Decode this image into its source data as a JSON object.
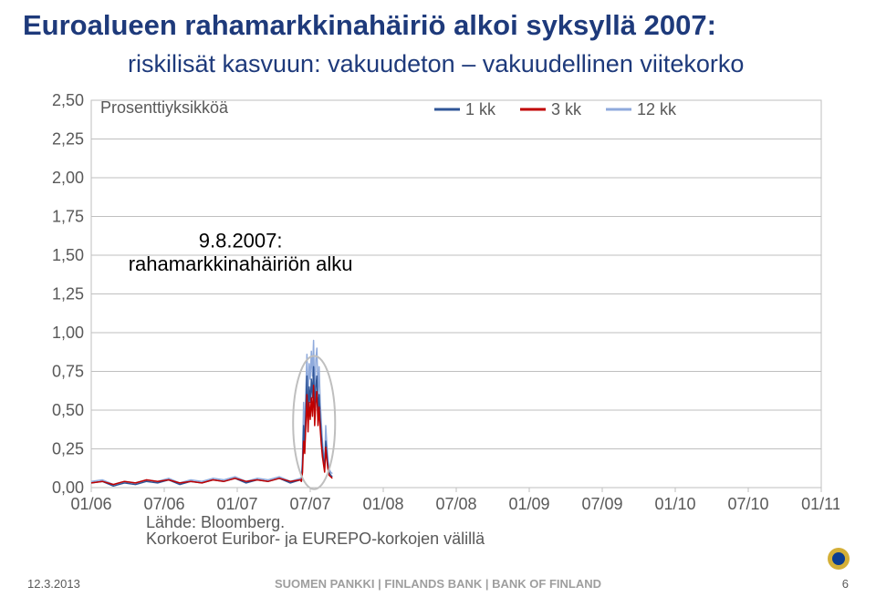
{
  "title": "Euroalueen rahamarkkinahäiriö alkoi syksyllä 2007:",
  "subtitle": "riskilisät kasvuun: vakuudeton – vakuudellinen viitekorko",
  "chart": {
    "type": "line",
    "unit_label": "Prosenttiyksikköä",
    "xlim": [
      0,
      132
    ],
    "ylim": [
      0.0,
      2.5
    ],
    "ytick_step": 0.25,
    "yticks": [
      "0,00",
      "0,25",
      "0,50",
      "0,75",
      "1,00",
      "1,25",
      "1,50",
      "1,75",
      "2,00",
      "2,25",
      "2,50"
    ],
    "xticks": [
      "01/06",
      "07/06",
      "01/07",
      "07/07",
      "01/08",
      "07/08",
      "01/09",
      "07/09",
      "01/10",
      "07/10",
      "01/11"
    ],
    "legend": [
      "1 kk",
      "3 kk",
      "12 kk"
    ],
    "legend_colors": [
      "#2f5597",
      "#c00000",
      "#8faadc"
    ],
    "background_color": "#ffffff",
    "grid_color": "#bfbfbf",
    "plot_border_color": "#bfbfbf",
    "axis_label_color": "#595959",
    "annotation": {
      "line1": "9.8.2007:",
      "line2": "rahamarkkinahäiriön alku"
    },
    "ellipse": {
      "cx_val": 40.3,
      "cy_val": 0.42,
      "rx_val": 3.8,
      "ry_val": 0.43,
      "stroke": "#bfbfbf",
      "stroke_width": 2
    },
    "line_width": 1.5,
    "series": {
      "12kk": {
        "color": "#8faadc",
        "points": [
          [
            0,
            0.04
          ],
          [
            2,
            0.05
          ],
          [
            4,
            0.02
          ],
          [
            6,
            0.04
          ],
          [
            8,
            0.03
          ],
          [
            10,
            0.05
          ],
          [
            12,
            0.04
          ],
          [
            14,
            0.06
          ],
          [
            16,
            0.03
          ],
          [
            18,
            0.05
          ],
          [
            20,
            0.04
          ],
          [
            22,
            0.06
          ],
          [
            24,
            0.05
          ],
          [
            26,
            0.07
          ],
          [
            28,
            0.04
          ],
          [
            30,
            0.06
          ],
          [
            32,
            0.05
          ],
          [
            34,
            0.07
          ],
          [
            36,
            0.04
          ],
          [
            37.8,
            0.06
          ],
          [
            38,
            0.05
          ],
          [
            38.2,
            0.2
          ],
          [
            38.4,
            0.55
          ],
          [
            38.6,
            0.35
          ],
          [
            38.8,
            0.62
          ],
          [
            39.0,
            0.86
          ],
          [
            39.2,
            0.55
          ],
          [
            39.4,
            0.8
          ],
          [
            39.6,
            0.7
          ],
          [
            39.8,
            0.88
          ],
          [
            40.0,
            0.72
          ],
          [
            40.2,
            0.95
          ],
          [
            40.4,
            0.58
          ],
          [
            40.6,
            0.82
          ],
          [
            40.8,
            0.9
          ],
          [
            41.0,
            0.6
          ],
          [
            41.2,
            0.78
          ],
          [
            41.4,
            0.55
          ],
          [
            41.6,
            0.42
          ],
          [
            41.8,
            0.3
          ],
          [
            42.0,
            0.22
          ],
          [
            42.2,
            0.15
          ],
          [
            42.4,
            0.4
          ],
          [
            42.6,
            0.28
          ],
          [
            42.8,
            0.18
          ],
          [
            43.0,
            0.12
          ],
          [
            43.3,
            0.1
          ],
          [
            43.6,
            0.09
          ]
        ]
      },
      "1kk": {
        "color": "#2f5597",
        "points": [
          [
            0,
            0.03
          ],
          [
            2,
            0.04
          ],
          [
            4,
            0.01
          ],
          [
            6,
            0.03
          ],
          [
            8,
            0.02
          ],
          [
            10,
            0.04
          ],
          [
            12,
            0.03
          ],
          [
            14,
            0.05
          ],
          [
            16,
            0.02
          ],
          [
            18,
            0.04
          ],
          [
            20,
            0.03
          ],
          [
            22,
            0.05
          ],
          [
            24,
            0.04
          ],
          [
            26,
            0.06
          ],
          [
            28,
            0.03
          ],
          [
            30,
            0.05
          ],
          [
            32,
            0.04
          ],
          [
            34,
            0.06
          ],
          [
            36,
            0.03
          ],
          [
            37.8,
            0.05
          ],
          [
            38,
            0.04
          ],
          [
            38.2,
            0.15
          ],
          [
            38.4,
            0.4
          ],
          [
            38.6,
            0.28
          ],
          [
            38.8,
            0.5
          ],
          [
            39.0,
            0.72
          ],
          [
            39.2,
            0.45
          ],
          [
            39.4,
            0.65
          ],
          [
            39.6,
            0.55
          ],
          [
            39.8,
            0.7
          ],
          [
            40.0,
            0.58
          ],
          [
            40.2,
            0.78
          ],
          [
            40.4,
            0.48
          ],
          [
            40.6,
            0.65
          ],
          [
            40.8,
            0.72
          ],
          [
            41.0,
            0.48
          ],
          [
            41.2,
            0.6
          ],
          [
            41.4,
            0.45
          ],
          [
            41.6,
            0.34
          ],
          [
            41.8,
            0.25
          ],
          [
            42.0,
            0.18
          ],
          [
            42.2,
            0.12
          ],
          [
            42.4,
            0.3
          ],
          [
            42.6,
            0.22
          ],
          [
            42.8,
            0.14
          ],
          [
            43.0,
            0.1
          ],
          [
            43.3,
            0.08
          ],
          [
            43.6,
            0.07
          ]
        ]
      },
      "3kk": {
        "color": "#c00000",
        "points": [
          [
            0,
            0.03
          ],
          [
            2,
            0.04
          ],
          [
            4,
            0.02
          ],
          [
            6,
            0.04
          ],
          [
            8,
            0.03
          ],
          [
            10,
            0.05
          ],
          [
            12,
            0.04
          ],
          [
            14,
            0.05
          ],
          [
            16,
            0.03
          ],
          [
            18,
            0.04
          ],
          [
            20,
            0.03
          ],
          [
            22,
            0.05
          ],
          [
            24,
            0.04
          ],
          [
            26,
            0.06
          ],
          [
            28,
            0.04
          ],
          [
            30,
            0.05
          ],
          [
            32,
            0.04
          ],
          [
            34,
            0.06
          ],
          [
            36,
            0.04
          ],
          [
            37.8,
            0.05
          ],
          [
            38,
            0.04
          ],
          [
            38.2,
            0.1
          ],
          [
            38.4,
            0.3
          ],
          [
            38.6,
            0.22
          ],
          [
            38.8,
            0.4
          ],
          [
            39.0,
            0.6
          ],
          [
            39.2,
            0.36
          ],
          [
            39.4,
            0.55
          ],
          [
            39.6,
            0.44
          ],
          [
            39.8,
            0.58
          ],
          [
            40.0,
            0.46
          ],
          [
            40.2,
            0.66
          ],
          [
            40.4,
            0.4
          ],
          [
            40.6,
            0.55
          ],
          [
            40.8,
            0.62
          ],
          [
            41.0,
            0.4
          ],
          [
            41.2,
            0.52
          ],
          [
            41.4,
            0.38
          ],
          [
            41.6,
            0.28
          ],
          [
            41.8,
            0.2
          ],
          [
            42.0,
            0.15
          ],
          [
            42.2,
            0.1
          ],
          [
            42.4,
            0.26
          ],
          [
            42.6,
            0.18
          ],
          [
            42.8,
            0.12
          ],
          [
            43.0,
            0.08
          ],
          [
            43.3,
            0.07
          ],
          [
            43.6,
            0.06
          ]
        ]
      }
    },
    "source_label": "Lähde: Bloomberg.",
    "source_note": "Korkoerot Euribor- ja EUREPO-korkojen välillä"
  },
  "footer": {
    "date": "12.3.2013",
    "center": "SUOMEN PANKKI | FINLANDS BANK | BANK OF FINLAND",
    "page": "6"
  },
  "logo": {
    "outer": "#d4af37",
    "inner": "#0b3d91"
  }
}
